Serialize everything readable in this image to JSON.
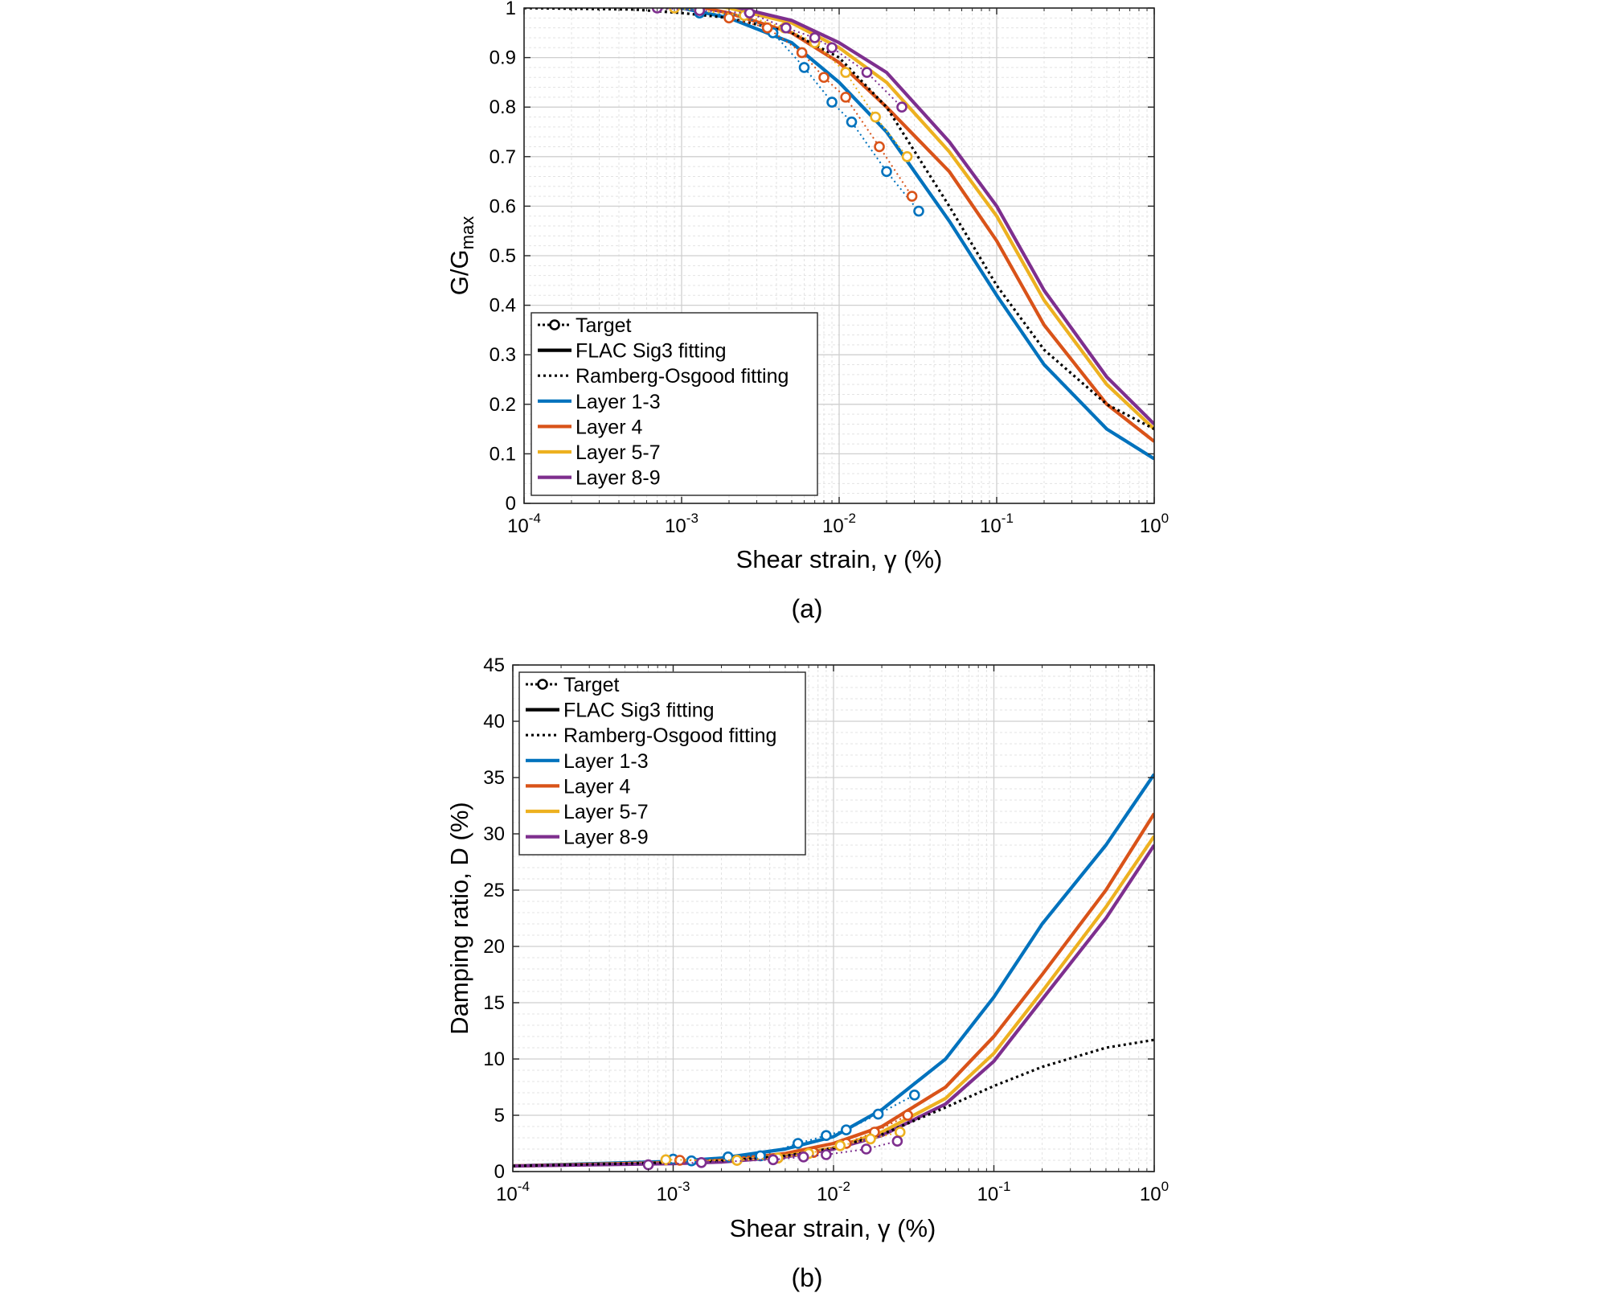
{
  "charts": [
    {
      "caption": "(a)",
      "xlabel": "Shear strain, γ (%)",
      "ylabel": "G/G",
      "ylabel_sub": "max"
    },
    {
      "caption": "(b)",
      "xlabel": "Shear strain, γ (%)",
      "ylabel": "Damping ratio, D (%)",
      "ylabel_sub": ""
    }
  ],
  "legend": [
    {
      "label": "Target",
      "kind": "target"
    },
    {
      "label": "FLAC Sig3 fitting",
      "kind": "solid"
    },
    {
      "label": "Ramberg-Osgood fitting",
      "kind": "dotted"
    },
    {
      "label": "Layer 1-3",
      "kind": "layer",
      "color": "#0072BD"
    },
    {
      "label": "Layer 4",
      "kind": "layer",
      "color": "#D95319"
    },
    {
      "label": "Layer 5-7",
      "kind": "layer",
      "color": "#EDB120"
    },
    {
      "label": "Layer 8-9",
      "kind": "layer",
      "color": "#7E2F8E"
    }
  ],
  "chart_data": [
    {
      "type": "line",
      "xscale": "log",
      "xlim": [
        0.0001,
        1
      ],
      "ylim": [
        0,
        1.0
      ],
      "yticks": [
        0,
        0.1,
        0.2,
        0.3,
        0.4,
        0.5,
        0.6,
        0.7,
        0.8,
        0.9,
        1
      ],
      "ytick_labels": [
        "0",
        "0.1",
        "0.2",
        "0.3",
        "0.4",
        "0.5",
        "0.6",
        "0.7",
        "0.8",
        "0.9",
        "1"
      ],
      "xticks": [
        0.0001,
        0.001,
        0.01,
        0.1,
        1
      ],
      "xtick_labels": [
        [
          "10",
          "-4"
        ],
        [
          "10",
          "-3"
        ],
        [
          "10",
          "-2"
        ],
        [
          "10",
          "-1"
        ],
        [
          "10",
          "0"
        ]
      ],
      "grid": true,
      "legend_position": "lower-left",
      "series": [
        {
          "name": "Layer 1-3",
          "style": "solid",
          "color": "#0072BD",
          "x": [
            0.0001,
            0.001,
            0.002,
            0.005,
            0.01,
            0.02,
            0.05,
            0.1,
            0.2,
            0.5,
            1
          ],
          "y": [
            1.03,
            1.0,
            0.98,
            0.93,
            0.85,
            0.75,
            0.57,
            0.42,
            0.28,
            0.15,
            0.09
          ]
        },
        {
          "name": "Layer 4",
          "style": "solid",
          "color": "#D95319",
          "x": [
            0.0001,
            0.001,
            0.002,
            0.005,
            0.01,
            0.02,
            0.05,
            0.1,
            0.2,
            0.5,
            1
          ],
          "y": [
            1.03,
            1.01,
            0.99,
            0.95,
            0.89,
            0.8,
            0.67,
            0.53,
            0.36,
            0.2,
            0.125
          ]
        },
        {
          "name": "Layer 5-7",
          "style": "solid",
          "color": "#EDB120",
          "x": [
            0.0001,
            0.001,
            0.002,
            0.005,
            0.01,
            0.02,
            0.05,
            0.1,
            0.2,
            0.5,
            1
          ],
          "y": [
            1.03,
            1.015,
            1.0,
            0.97,
            0.92,
            0.85,
            0.71,
            0.58,
            0.41,
            0.24,
            0.15
          ]
        },
        {
          "name": "Layer 8-9",
          "style": "solid",
          "color": "#7E2F8E",
          "x": [
            0.0001,
            0.001,
            0.002,
            0.005,
            0.01,
            0.02,
            0.05,
            0.1,
            0.2,
            0.5,
            1
          ],
          "y": [
            1.03,
            1.02,
            1.005,
            0.975,
            0.93,
            0.87,
            0.73,
            0.6,
            0.43,
            0.255,
            0.16
          ]
        },
        {
          "name": "Ramberg-Osgood fitting",
          "style": "dotted",
          "color": "#000000",
          "x": [
            0.0001,
            0.0005,
            0.001,
            0.002,
            0.005,
            0.01,
            0.02,
            0.05,
            0.1,
            0.2,
            0.5,
            1
          ],
          "y": [
            1.0,
            0.997,
            0.99,
            0.98,
            0.95,
            0.9,
            0.8,
            0.6,
            0.44,
            0.31,
            0.2,
            0.15
          ]
        },
        {
          "name": "Target Layer 1-3",
          "style": "target",
          "color": "#0072BD",
          "x": [
            0.0013,
            0.0025,
            0.0038,
            0.006,
            0.009,
            0.012,
            0.02,
            0.032
          ],
          "y": [
            0.99,
            0.985,
            0.95,
            0.88,
            0.81,
            0.77,
            0.67,
            0.59
          ]
        },
        {
          "name": "Target Layer 4",
          "style": "target",
          "color": "#D95319",
          "x": [
            0.002,
            0.0035,
            0.0058,
            0.008,
            0.011,
            0.018,
            0.029
          ],
          "y": [
            0.98,
            0.96,
            0.91,
            0.86,
            0.82,
            0.72,
            0.62
          ]
        },
        {
          "name": "Target Layer 5-7",
          "style": "target",
          "color": "#EDB120",
          "x": [
            0.0009,
            0.0025,
            0.0045,
            0.007,
            0.011,
            0.017,
            0.027
          ],
          "y": [
            1.0,
            0.985,
            0.96,
            0.93,
            0.87,
            0.78,
            0.7
          ]
        },
        {
          "name": "Target Layer 8-9",
          "style": "target",
          "color": "#7E2F8E",
          "x": [
            0.0007,
            0.0013,
            0.0027,
            0.0046,
            0.007,
            0.009,
            0.015,
            0.025
          ],
          "y": [
            1.0,
            0.995,
            0.99,
            0.96,
            0.94,
            0.92,
            0.87,
            0.8
          ]
        }
      ]
    },
    {
      "type": "line",
      "xscale": "log",
      "xlim": [
        0.0001,
        1
      ],
      "ylim": [
        0,
        45
      ],
      "yticks": [
        0,
        5,
        10,
        15,
        20,
        25,
        30,
        35,
        40,
        45
      ],
      "ytick_labels": [
        "0",
        "5",
        "10",
        "15",
        "20",
        "25",
        "30",
        "35",
        "40",
        "45"
      ],
      "xticks": [
        0.0001,
        0.001,
        0.01,
        0.1,
        1
      ],
      "xtick_labels": [
        [
          "10",
          "-4"
        ],
        [
          "10",
          "-3"
        ],
        [
          "10",
          "-2"
        ],
        [
          "10",
          "-1"
        ],
        [
          "10",
          "0"
        ]
      ],
      "grid": true,
      "legend_position": "upper-left",
      "series": [
        {
          "name": "Layer 1-3",
          "style": "solid",
          "color": "#0072BD",
          "x": [
            0.0001,
            0.001,
            0.002,
            0.005,
            0.01,
            0.02,
            0.05,
            0.1,
            0.2,
            0.5,
            1
          ],
          "y": [
            0.5,
            0.9,
            1.2,
            2.0,
            3.1,
            5.5,
            10.0,
            15.5,
            22.0,
            29.0,
            35.3
          ]
        },
        {
          "name": "Layer 4",
          "style": "solid",
          "color": "#D95319",
          "x": [
            0.0001,
            0.001,
            0.002,
            0.005,
            0.01,
            0.02,
            0.05,
            0.1,
            0.2,
            0.5,
            1
          ],
          "y": [
            0.5,
            0.8,
            1.0,
            1.6,
            2.5,
            4.0,
            7.5,
            12.0,
            17.5,
            25.0,
            31.8
          ]
        },
        {
          "name": "Layer 5-7",
          "style": "solid",
          "color": "#EDB120",
          "x": [
            0.0001,
            0.001,
            0.002,
            0.005,
            0.01,
            0.02,
            0.05,
            0.1,
            0.2,
            0.5,
            1
          ],
          "y": [
            0.5,
            0.75,
            0.9,
            1.4,
            2.1,
            3.5,
            6.5,
            10.5,
            16.0,
            23.5,
            29.8
          ]
        },
        {
          "name": "Layer 8-9",
          "style": "solid",
          "color": "#7E2F8E",
          "x": [
            0.0001,
            0.001,
            0.002,
            0.005,
            0.01,
            0.02,
            0.05,
            0.1,
            0.2,
            0.5,
            1
          ],
          "y": [
            0.5,
            0.7,
            0.85,
            1.3,
            2.0,
            3.2,
            6.0,
            9.8,
            15.3,
            22.5,
            29.0
          ]
        },
        {
          "name": "Ramberg-Osgood fitting",
          "style": "dotted",
          "color": "#000000",
          "x": [
            0.0001,
            0.001,
            0.002,
            0.005,
            0.01,
            0.02,
            0.05,
            0.1,
            0.2,
            0.5,
            1
          ],
          "y": [
            0.5,
            0.8,
            0.95,
            1.4,
            2.1,
            3.3,
            5.7,
            7.6,
            9.3,
            11.0,
            11.7
          ]
        },
        {
          "name": "Target Layer 1-3",
          "style": "target",
          "color": "#0072BD",
          "x": [
            0.001,
            0.0013,
            0.0022,
            0.0035,
            0.006,
            0.009,
            0.012,
            0.019,
            0.032
          ],
          "y": [
            1.1,
            0.95,
            1.3,
            1.4,
            2.5,
            3.2,
            3.7,
            5.1,
            6.8
          ]
        },
        {
          "name": "Target Layer 4",
          "style": "target",
          "color": "#D95319",
          "x": [
            0.0011,
            0.0025,
            0.0045,
            0.0075,
            0.012,
            0.018,
            0.029
          ],
          "y": [
            1.0,
            1.0,
            1.2,
            1.7,
            2.5,
            3.5,
            5.0
          ]
        },
        {
          "name": "Target Layer 5-7",
          "style": "target",
          "color": "#EDB120",
          "x": [
            0.0009,
            0.0025,
            0.0045,
            0.007,
            0.011,
            0.017,
            0.026
          ],
          "y": [
            1.05,
            1.0,
            1.2,
            1.6,
            2.3,
            2.9,
            3.5
          ]
        },
        {
          "name": "Target Layer 8-9",
          "style": "target",
          "color": "#7E2F8E",
          "x": [
            0.0007,
            0.0015,
            0.0042,
            0.0065,
            0.009,
            0.016,
            0.025
          ],
          "y": [
            0.6,
            0.8,
            1.05,
            1.3,
            1.5,
            2.0,
            2.7
          ]
        }
      ]
    }
  ]
}
